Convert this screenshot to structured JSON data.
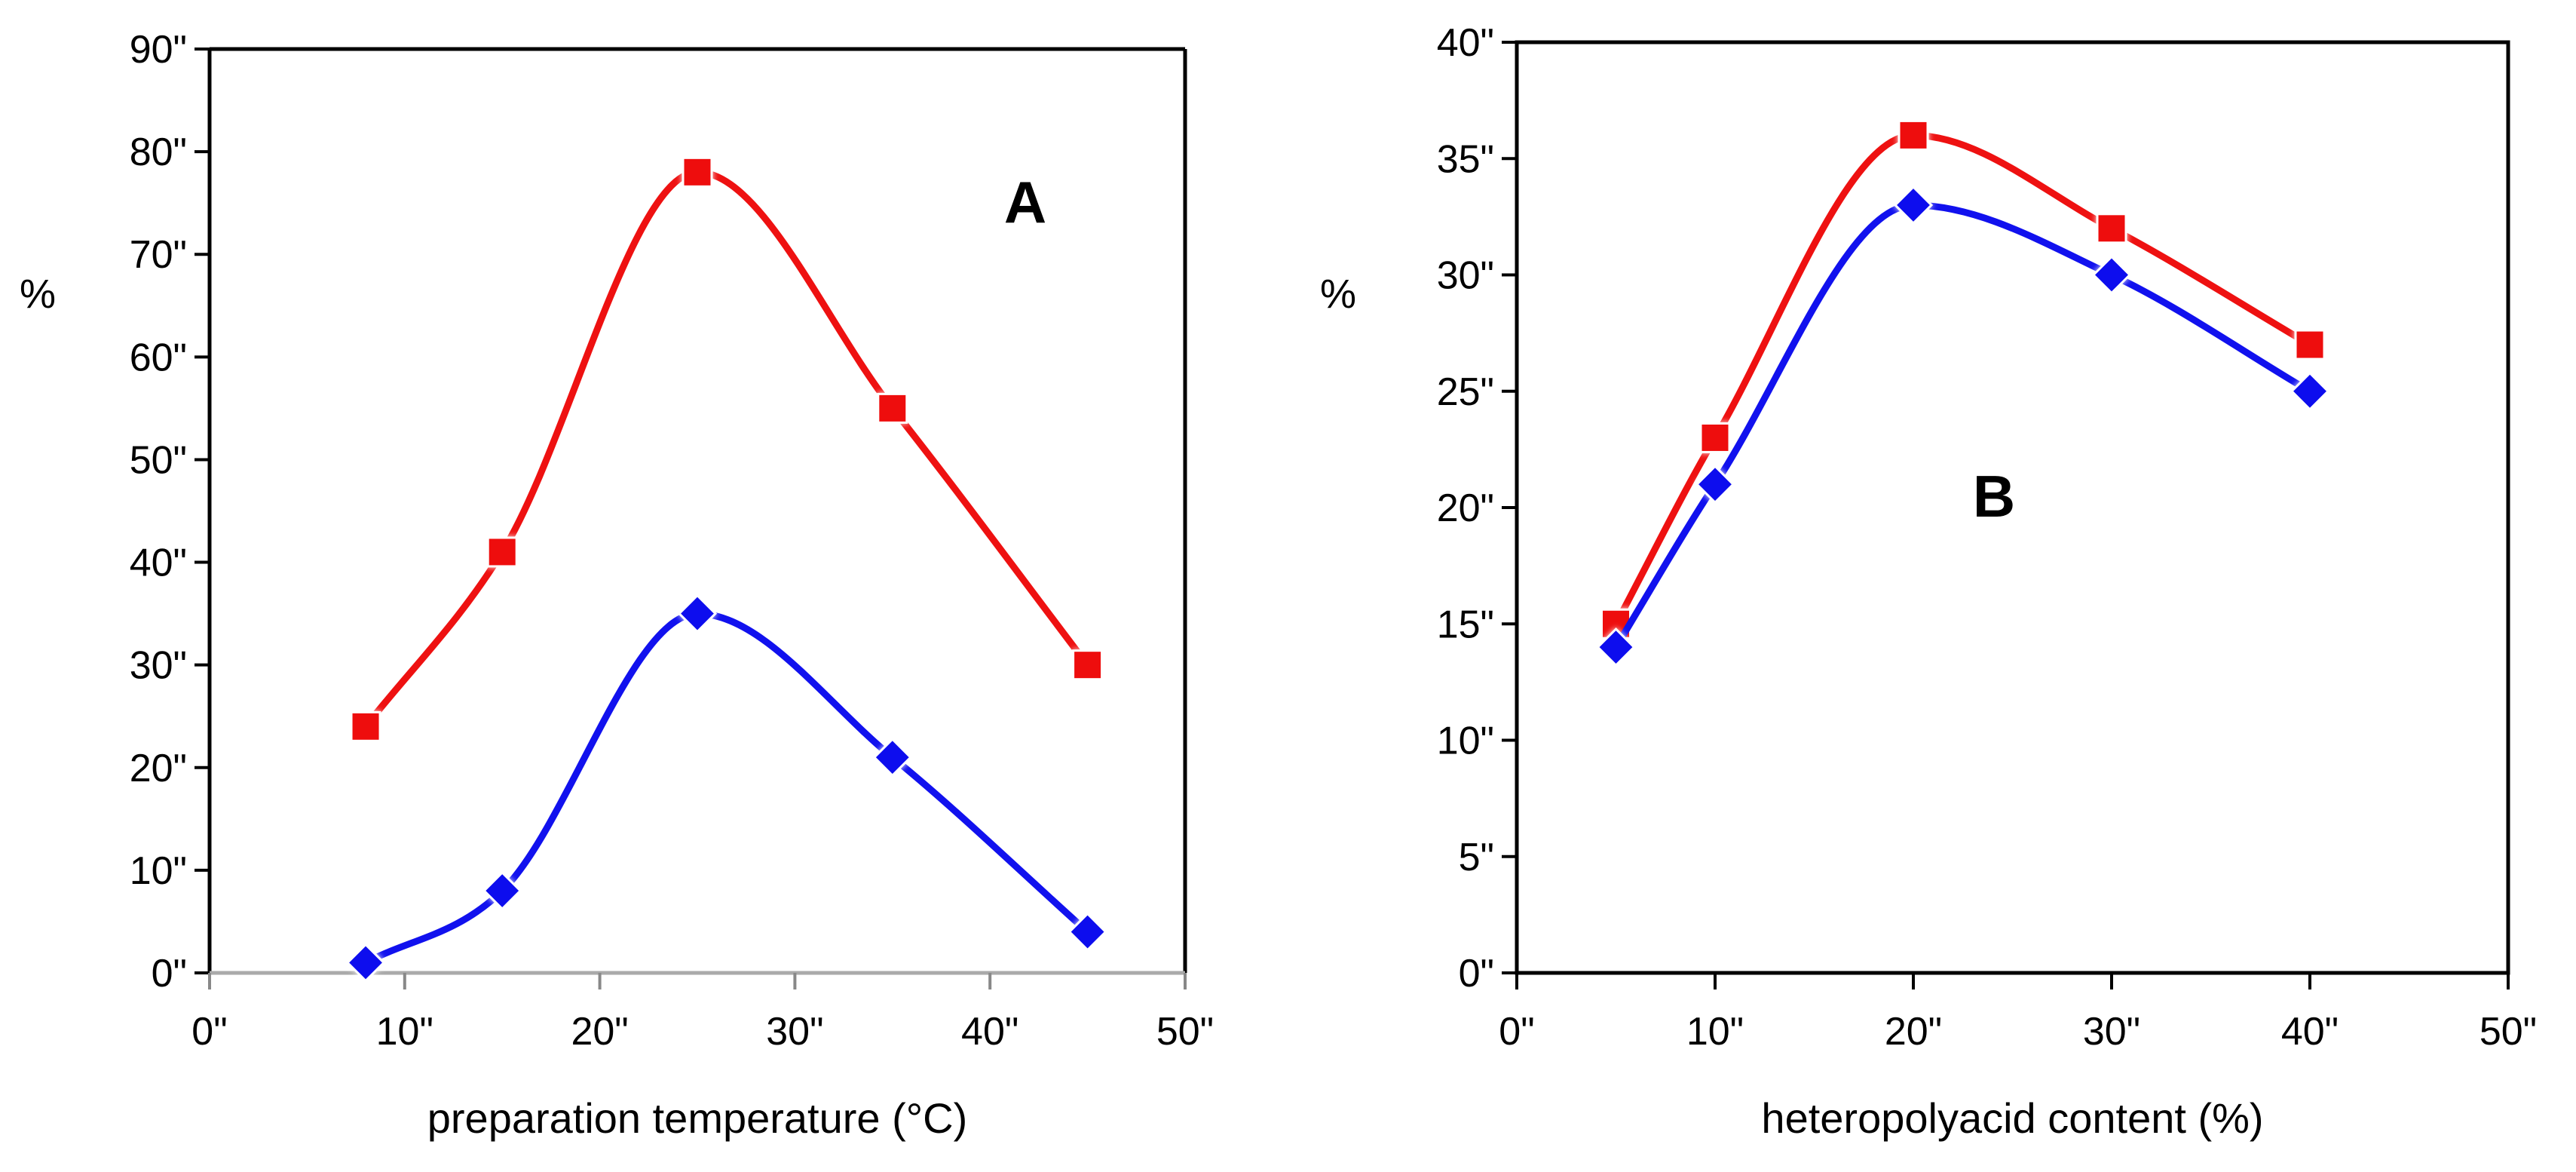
{
  "chart_data": [
    {
      "type": "line",
      "panel_label": "A",
      "title": "",
      "xlabel": "preparation temperature (°C)",
      "ylabel": "%",
      "xlim": [
        0,
        50
      ],
      "ylim": [
        0,
        90
      ],
      "xticks": [
        0,
        10,
        20,
        30,
        40,
        50
      ],
      "xtick_labels": [
        "0\"",
        "10\"",
        "20\"",
        "30\"",
        "40\"",
        "50\""
      ],
      "yticks": [
        0,
        10,
        20,
        30,
        40,
        50,
        60,
        70,
        80,
        90
      ],
      "ytick_labels": [
        "0\"",
        "10\"",
        "20\"",
        "30\"",
        "40\"",
        "50\"",
        "60\"",
        "70\"",
        "80\"",
        "90\""
      ],
      "grid": false,
      "smooth": true,
      "x": [
        8,
        15,
        25,
        35,
        45
      ],
      "series": [
        {
          "name": "red squares",
          "color": "#ee1111",
          "marker": "square",
          "values": [
            24,
            41,
            78,
            55,
            30
          ]
        },
        {
          "name": "blue diamonds",
          "color": "#1111ee",
          "marker": "diamond",
          "values": [
            1,
            8,
            35,
            21,
            4
          ]
        }
      ]
    },
    {
      "type": "line",
      "panel_label": "B",
      "title": "",
      "xlabel": "heteropolyacid content (%)",
      "ylabel": "%",
      "xlim": [
        0,
        50
      ],
      "ylim": [
        0,
        40
      ],
      "xticks": [
        0,
        10,
        20,
        30,
        40,
        50
      ],
      "xtick_labels": [
        "0\"",
        "10\"",
        "20\"",
        "30\"",
        "40\"",
        "50\""
      ],
      "yticks": [
        0,
        5,
        10,
        15,
        20,
        25,
        30,
        35,
        40
      ],
      "ytick_labels": [
        "0\"",
        "5\"",
        "10\"",
        "15\"",
        "20\"",
        "25\"",
        "30\"",
        "35\"",
        "40\""
      ],
      "grid": false,
      "smooth": true,
      "x": [
        5,
        10,
        20,
        30,
        40
      ],
      "series": [
        {
          "name": "red squares",
          "color": "#ee1111",
          "marker": "square",
          "values": [
            15,
            23,
            36,
            32,
            27
          ]
        },
        {
          "name": "blue diamonds",
          "color": "#1111ee",
          "marker": "diamond",
          "values": [
            14,
            21,
            33,
            30,
            25
          ]
        }
      ]
    }
  ]
}
